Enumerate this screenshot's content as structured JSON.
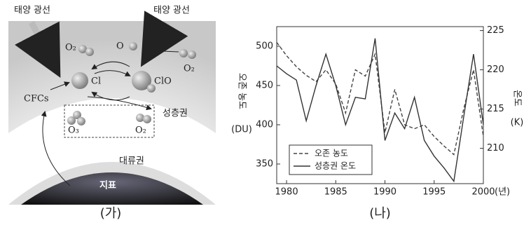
{
  "diagram": {
    "sunlight_left": "태양 광선",
    "sunlight_right": "태양 광선",
    "o2_top_left": "O₂",
    "o_atom": "O",
    "o2_right": "O₂",
    "cl": "Cl",
    "clo": "ClO",
    "cfcs": "CFCs",
    "stratosphere": "성층권",
    "o3": "O₃",
    "o2_bottom": "O₂",
    "troposphere": "대류권",
    "surface": "지표",
    "caption": "(가)"
  },
  "chart_data": {
    "type": "line",
    "caption": "(나)",
    "y_label": "오존 농도",
    "y_unit": "(DU)",
    "y2_label": "온도",
    "y2_unit": "(K)",
    "x_unit": "(년)",
    "x": [
      1979,
      1980,
      1981,
      1982,
      1983,
      1984,
      1985,
      1986,
      1987,
      1988,
      1989,
      1990,
      1991,
      1992,
      1993,
      1994,
      1995,
      1996,
      1997,
      1998,
      1999,
      2000
    ],
    "xlim": [
      1979,
      2000
    ],
    "xticks": [
      1980,
      1985,
      1990,
      1995,
      2000
    ],
    "ylim": [
      325,
      525
    ],
    "yticks": [
      350,
      400,
      450,
      500
    ],
    "y2lim": [
      205.5,
      225.5
    ],
    "y2ticks": [
      210,
      215,
      220,
      225
    ],
    "legend": "lower left",
    "series": [
      {
        "name": "오존 농도",
        "color": "#444444",
        "linestyle": "dashed",
        "values": [
          505,
          488,
          474,
          463,
          455,
          470,
          452,
          415,
          470,
          462,
          490,
          390,
          445,
          400,
          395,
          400,
          385,
          373,
          362,
          420,
          470,
          385
        ]
      },
      {
        "name": "성층권 온도",
        "color": "#333333",
        "linestyle": "solid",
        "axis": "y2",
        "values": [
          220.5,
          219.5,
          218.7,
          213.5,
          218,
          222,
          218,
          213,
          216.5,
          216.3,
          224,
          211,
          214.5,
          212.5,
          216.5,
          211,
          209,
          207.5,
          205.8,
          214,
          222,
          213
        ]
      }
    ]
  }
}
